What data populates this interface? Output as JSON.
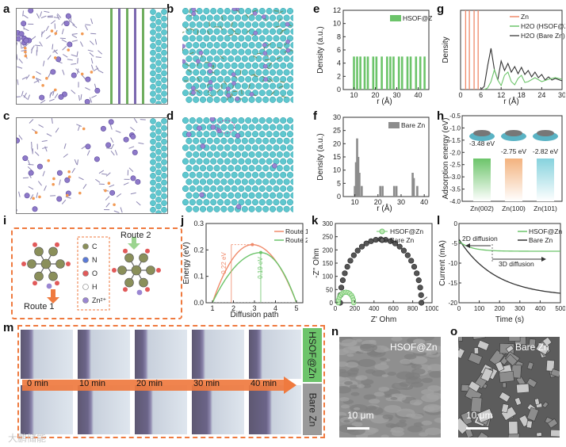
{
  "panels": {
    "a": "a",
    "b": "b",
    "c": "c",
    "d": "d",
    "e": "e",
    "f": "f",
    "g": "g",
    "h": "h",
    "i": "i",
    "j": "j",
    "k": "k",
    "l": "l",
    "m": "m",
    "n": "n",
    "o": "o"
  },
  "colors": {
    "green": "#6cc46a",
    "orange": "#f08a6a",
    "gray": "#8c8c8c",
    "dark": "#333333",
    "teal_atom": "#5fc7cf",
    "purple_atom": "#8e79c9",
    "arrow_orange": "#ef7a3f"
  },
  "chart_data": [
    {
      "panel": "e",
      "type": "bar",
      "legend": [
        "HSOF@Zn"
      ],
      "xlabel": "r (Å)",
      "ylabel": "Density (a.u.)",
      "xlim": [
        5,
        45
      ],
      "ylim": [
        0,
        12
      ],
      "xticks": [
        "10",
        "20",
        "30",
        "40"
      ],
      "yticks": [
        "0",
        "2",
        "4",
        "6",
        "8",
        "10",
        "12"
      ],
      "x": [
        10,
        11.5,
        13,
        15,
        16.5,
        19,
        20.5,
        23,
        25.5,
        27,
        28.5,
        31,
        32.5,
        35,
        36.5,
        39,
        41,
        43
      ],
      "values": [
        5,
        5,
        5,
        5,
        5,
        5,
        5,
        5,
        5,
        5,
        5,
        5,
        5,
        5,
        5,
        5,
        5,
        5
      ]
    },
    {
      "panel": "f",
      "type": "bar",
      "legend": [
        "Bare Zn"
      ],
      "xlabel": "r (Å)",
      "ylabel": "Density (a.u.)",
      "xlim": [
        5,
        42
      ],
      "ylim": [
        0,
        30
      ],
      "xticks": [
        "10",
        "20",
        "30",
        "40"
      ],
      "yticks": [
        "0",
        "5",
        "10",
        "15",
        "20",
        "25",
        "30"
      ],
      "x": [
        10,
        10.5,
        11,
        11.5,
        12,
        13,
        21,
        22,
        27,
        28,
        35,
        35.5,
        37
      ],
      "values": [
        4,
        13,
        22,
        15,
        9,
        4,
        4,
        4,
        4,
        4,
        9,
        7,
        4
      ]
    },
    {
      "panel": "g",
      "type": "line",
      "legend": [
        "Zn",
        "H2O (HSOF@Zn)",
        "H2O (Bare Zn)"
      ],
      "xlabel": "r (Å)",
      "ylabel": "Density",
      "xlim": [
        0,
        30
      ],
      "ylim": [
        0,
        10
      ],
      "xticks": [
        "0",
        "6",
        "12",
        "18",
        "24",
        "30"
      ],
      "yticks": []
    },
    {
      "panel": "h",
      "type": "bar",
      "ylabel": "Adsorption energy (eV)",
      "categories": [
        "Zn(002)",
        "Zn(100)",
        "Zn(101)"
      ],
      "values": [
        -3.48,
        -2.75,
        -2.82
      ],
      "data_labels": [
        "-3.48 eV",
        "-2.75 eV",
        "-2.82 eV"
      ],
      "yticks": [
        "-0.5",
        "-1.0",
        "-1.5",
        "-2.0",
        "-2.5",
        "-3.0",
        "-3.5",
        "-4.0"
      ],
      "ylim": [
        -4.0,
        -0.5
      ]
    },
    {
      "panel": "j",
      "type": "line",
      "legend": [
        "Route 1",
        "Route 2"
      ],
      "xlabel": "Diffusion path",
      "ylabel": "Energy (eV)",
      "xlim": [
        0.7,
        5.3
      ],
      "ylim": [
        0,
        0.3
      ],
      "xticks": [
        "1",
        "2",
        "3",
        "4",
        "5"
      ],
      "yticks": [
        "0.0",
        "0.1",
        "0.2",
        "0.3"
      ],
      "annotations": [
        "0.22 eV",
        "0.19 eV"
      ]
    },
    {
      "panel": "k",
      "type": "scatter",
      "legend": [
        "HSOF@Zn",
        "Bare Zn"
      ],
      "xlabel": "Z' Ohm",
      "ylabel": "-Z'' Ohm",
      "xlim": [
        0,
        1000
      ],
      "ylim": [
        0,
        300
      ],
      "xticks": [
        "0",
        "200",
        "400",
        "600",
        "800",
        "1000"
      ],
      "yticks": [
        "0",
        "50",
        "100",
        "150",
        "200",
        "250",
        "300"
      ]
    },
    {
      "panel": "l",
      "type": "line",
      "legend": [
        "HSOF@Zn",
        "Bare Zn"
      ],
      "xlabel": "Time (s)",
      "ylabel": "Current (mA)",
      "xlim": [
        0,
        500
      ],
      "ylim": [
        -20,
        0
      ],
      "xticks": [
        "0",
        "100",
        "200",
        "300",
        "400",
        "500"
      ],
      "yticks": [
        "0",
        "-5",
        "-10",
        "-15",
        "-20"
      ],
      "annotations": [
        "2D diffusion",
        "3D diffusion"
      ]
    }
  ],
  "panel_i": {
    "route1": "Route 1",
    "route2": "Route 2",
    "legend": [
      "C",
      "N",
      "O",
      "H",
      "Zn²⁺"
    ]
  },
  "panel_m": {
    "times": [
      "0 min",
      "10 min",
      "20 min",
      "30 min",
      "40 min"
    ],
    "side_top": "HSOF@Zn",
    "side_bottom": "Bare Zn"
  },
  "panel_n": {
    "label": "HSOF@Zn",
    "scale": "10 μm"
  },
  "panel_o": {
    "label": "Bare Zn",
    "scale": "10 μm"
  },
  "watermark": "大鹏储能"
}
